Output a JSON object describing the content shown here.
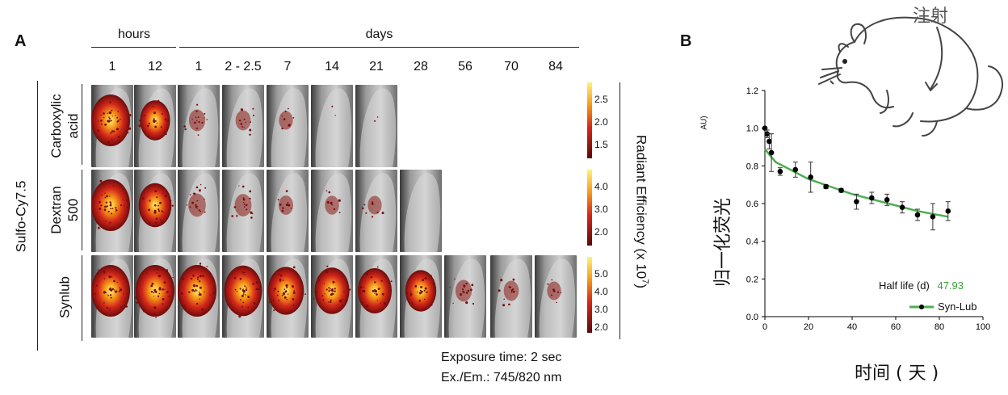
{
  "panelA": {
    "letter": "A",
    "group_hours": "hours",
    "group_days": "days",
    "timepoints": [
      "1",
      "12",
      "1",
      "2 - 2.5",
      "7",
      "14",
      "21",
      "28",
      "56",
      "70",
      "84"
    ],
    "side_label": "Sulfo-Cy7.5",
    "rows": [
      {
        "label_line1": "Carboxylic",
        "label_line2": "acid",
        "n_images": 7,
        "intensity": [
          1.0,
          0.55,
          0.4,
          0.3,
          0.2,
          0.06,
          0.05
        ],
        "colorbar_ticks": [
          "2.5",
          "2.0",
          "1.5"
        ]
      },
      {
        "label_line1": "Dextran",
        "label_line2": "500",
        "n_images": 8,
        "intensity": [
          1.0,
          0.7,
          0.5,
          0.45,
          0.25,
          0.22,
          0.2,
          0.0
        ],
        "colorbar_ticks": [
          "4.0",
          "3.0",
          "2.0"
        ]
      },
      {
        "label_line1": "Synlub",
        "label_line2": "",
        "n_images": 11,
        "intensity": [
          1.0,
          1.0,
          1.0,
          0.95,
          0.85,
          0.8,
          0.75,
          0.6,
          0.4,
          0.3,
          0.2
        ],
        "colorbar_ticks": [
          "5.0",
          "4.0",
          "3.0",
          "2.0"
        ]
      }
    ],
    "colorbar_title": "Radiant Efficiency (x 10",
    "colorbar_title_exp": "7",
    "colorbar_title_end": ")",
    "exposure": "Exposure time: 2 sec",
    "exem": "Ex./Em.: 745/820 nm"
  },
  "panelB": {
    "letter": "B",
    "inject_label": "注射",
    "ylabel": "归一化荧光",
    "ylabel_unit": "AU)",
    "xlabel": "时间 ( 天 )",
    "half_life_label": "Half life (d)",
    "half_life_value": "47.93",
    "legend_label": "Syn-Lub"
  },
  "chart_data": {
    "type": "scatter",
    "xlabel": "时间 ( 天 )",
    "ylabel": "归一化荧光",
    "xlim": [
      0,
      100
    ],
    "ylim": [
      0,
      1.2
    ],
    "xticks": [
      "0",
      "20",
      "40",
      "60",
      "80",
      "100"
    ],
    "yticks": [
      "0.0",
      "0.2",
      "0.4",
      "0.6",
      "0.8",
      "1.0",
      "1.2"
    ],
    "series": [
      {
        "name": "Syn-Lub",
        "x": [
          0,
          1,
          2,
          3,
          7,
          14,
          21,
          28,
          35,
          42,
          49,
          56,
          63,
          70,
          77,
          84
        ],
        "y": [
          1.0,
          0.97,
          0.93,
          0.87,
          0.77,
          0.78,
          0.74,
          0.69,
          0.67,
          0.61,
          0.63,
          0.62,
          0.58,
          0.54,
          0.53,
          0.56
        ],
        "err": [
          0.0,
          0.02,
          0.04,
          0.1,
          0.02,
          0.04,
          0.08,
          0.01,
          0.01,
          0.04,
          0.03,
          0.03,
          0.03,
          0.03,
          0.07,
          0.05
        ],
        "color": "#000000",
        "fit_color": "#4caf50"
      }
    ],
    "fit_curve": {
      "x": [
        0,
        2,
        5,
        10,
        20,
        30,
        40,
        50,
        60,
        70,
        84
      ],
      "y": [
        0.89,
        0.86,
        0.82,
        0.79,
        0.73,
        0.69,
        0.65,
        0.62,
        0.59,
        0.56,
        0.53
      ]
    },
    "grid": false,
    "legend": "bottom-right"
  }
}
